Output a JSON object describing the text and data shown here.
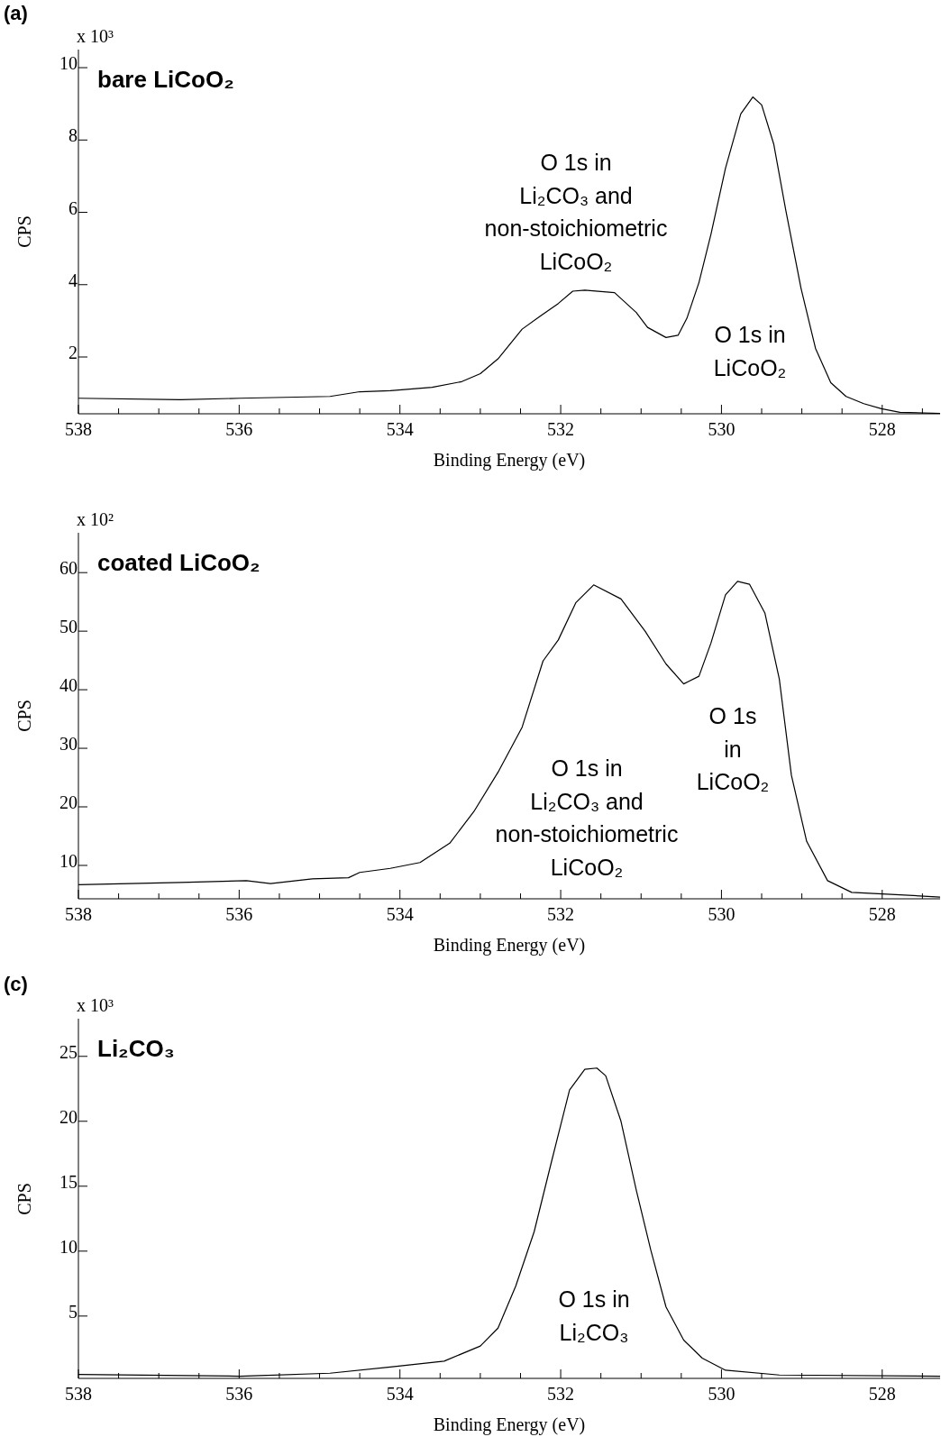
{
  "chart_data": [
    {
      "type": "line",
      "title": "bare LiCoO₂",
      "subtitle": "x 10³",
      "xlabel": "Binding Energy (eV)",
      "ylabel": "CPS",
      "marker": "none",
      "xlim": [
        538,
        527.28
      ],
      "ylim": [
        0.43,
        10.5
      ],
      "xticks": [
        538,
        {
          "value": 537.5,
          "label": null
        },
        {
          "value": 537,
          "label": null
        },
        {
          "value": 536.5,
          "label": null
        },
        536,
        {
          "value": 535.5,
          "label": null
        },
        {
          "value": 535,
          "label": null
        },
        {
          "value": 534.5,
          "label": null
        },
        534,
        {
          "value": 533.5,
          "label": null
        },
        {
          "value": 533,
          "label": null
        },
        {
          "value": 532.5,
          "label": null
        },
        532,
        {
          "value": 531.5,
          "label": null
        },
        {
          "value": 531,
          "label": null
        },
        {
          "value": 530.5,
          "label": null
        },
        530,
        {
          "value": 529.5,
          "label": null
        },
        {
          "value": 529,
          "label": null
        },
        {
          "value": 528.5,
          "label": null
        },
        528,
        {
          "value": 527.5,
          "label": null
        }
      ],
      "yticks": [
        2,
        4,
        6,
        8,
        10
      ],
      "x": [
        538,
        536.73,
        535.99,
        534.87,
        534.5,
        534.12,
        533.6,
        533.23,
        533.0,
        532.78,
        532.48,
        532.26,
        532.03,
        531.85,
        531.7,
        531.33,
        531.06,
        530.92,
        530.69,
        530.54,
        530.43,
        530.28,
        530.13,
        529.95,
        529.76,
        529.61,
        529.5,
        529.35,
        529.2,
        529.01,
        528.83,
        528.64,
        528.45,
        528.23,
        528.01,
        527.78,
        527.28
      ],
      "series": [
        {
          "color": "#000000",
          "values": [
            0.86,
            0.82,
            0.86,
            0.91,
            1.04,
            1.07,
            1.16,
            1.32,
            1.54,
            1.95,
            2.77,
            3.12,
            3.48,
            3.82,
            3.85,
            3.78,
            3.23,
            2.82,
            2.54,
            2.6,
            3.07,
            4.06,
            5.4,
            7.22,
            8.72,
            9.19,
            8.97,
            7.89,
            6.06,
            3.9,
            2.24,
            1.29,
            0.91,
            0.71,
            0.57,
            0.47,
            0.44
          ]
        }
      ],
      "annotations": [
        "(a)",
        "O 1s in\nLi₂CO₃ and\nnon-stoichiometric\nLiCoO₂",
        "O 1s in\nLiCoO₂"
      ]
    },
    {
      "type": "line",
      "title": "coated LiCoO₂",
      "subtitle": "x 10²",
      "xlabel": "Binding Energy (eV)",
      "ylabel": "CPS",
      "marker": "none",
      "xlim": [
        538,
        527.28
      ],
      "ylim": [
        4.3,
        66.8
      ],
      "xticks": [
        538,
        {
          "value": 537.5,
          "label": null
        },
        {
          "value": 537,
          "label": null
        },
        {
          "value": 536.5,
          "label": null
        },
        536,
        {
          "value": 535.5,
          "label": null
        },
        {
          "value": 535,
          "label": null
        },
        {
          "value": 534.5,
          "label": null
        },
        534,
        {
          "value": 533.5,
          "label": null
        },
        {
          "value": 533,
          "label": null
        },
        {
          "value": 532.5,
          "label": null
        },
        532,
        {
          "value": 531.5,
          "label": null
        },
        {
          "value": 531,
          "label": null
        },
        {
          "value": 530.5,
          "label": null
        },
        530,
        {
          "value": 529.5,
          "label": null
        },
        {
          "value": 529,
          "label": null
        },
        {
          "value": 528.5,
          "label": null
        },
        528,
        {
          "value": 527.5,
          "label": null
        }
      ],
      "yticks": [
        10,
        20,
        30,
        40,
        50,
        60
      ],
      "x": [
        538,
        536.73,
        535.91,
        535.61,
        535.09,
        534.64,
        534.5,
        534.12,
        533.75,
        533.38,
        533.08,
        532.78,
        532.48,
        532.22,
        532.03,
        531.81,
        531.59,
        531.25,
        530.95,
        530.69,
        530.47,
        530.28,
        530.13,
        529.95,
        529.8,
        529.65,
        529.46,
        529.28,
        529.13,
        528.94,
        528.68,
        528.38,
        527.94,
        527.28
      ],
      "series": [
        {
          "color": "#000000",
          "values": [
            6.7,
            7.1,
            7.4,
            6.9,
            7.7,
            7.9,
            8.8,
            9.5,
            10.5,
            13.8,
            19.2,
            25.9,
            33.6,
            44.9,
            48.5,
            54.9,
            57.9,
            55.5,
            50.0,
            44.4,
            41.0,
            42.3,
            48.0,
            56.2,
            58.5,
            58.0,
            53.1,
            41.8,
            25.4,
            14.1,
            7.4,
            5.4,
            5.1,
            4.6
          ]
        }
      ],
      "annotations": [
        "O 1s in\nLi₂CO₃ and\nnon-stoichiometric\nLiCoO₂",
        "O 1s\nin\nLiCoO₂"
      ]
    },
    {
      "type": "line",
      "title": "Li₂CO₃",
      "subtitle": "x 10³",
      "xlabel": "Binding Energy (eV)",
      "ylabel": "CPS",
      "marker": "none",
      "xlim": [
        538,
        527.28
      ],
      "ylim": [
        0.2,
        27.9
      ],
      "xticks": [
        538,
        {
          "value": 537.5,
          "label": null
        },
        {
          "value": 537,
          "label": null
        },
        {
          "value": 536.5,
          "label": null
        },
        536,
        {
          "value": 535.5,
          "label": null
        },
        {
          "value": 535,
          "label": null
        },
        {
          "value": 534.5,
          "label": null
        },
        534,
        {
          "value": 533.5,
          "label": null
        },
        {
          "value": 533,
          "label": null
        },
        {
          "value": 532.5,
          "label": null
        },
        532,
        {
          "value": 531.5,
          "label": null
        },
        {
          "value": 531,
          "label": null
        },
        {
          "value": 530.5,
          "label": null
        },
        530,
        {
          "value": 529.5,
          "label": null
        },
        {
          "value": 529,
          "label": null
        },
        {
          "value": 528.5,
          "label": null
        },
        528,
        {
          "value": 527.5,
          "label": null
        }
      ],
      "yticks": [
        5,
        10,
        15,
        20,
        25
      ],
      "x": [
        538,
        535.99,
        534.87,
        534.12,
        533.45,
        533.0,
        532.78,
        532.56,
        532.33,
        532.11,
        531.89,
        531.7,
        531.55,
        531.44,
        531.25,
        531.06,
        530.88,
        530.69,
        530.47,
        530.24,
        529.95,
        529.28,
        527.28
      ],
      "series": [
        {
          "color": "#000000",
          "values": [
            0.5,
            0.37,
            0.6,
            1.07,
            1.53,
            2.69,
            4.07,
            7.3,
            11.5,
            17.0,
            22.4,
            24.0,
            24.1,
            23.5,
            20.0,
            14.7,
            10.1,
            5.7,
            3.15,
            1.76,
            0.83,
            0.46,
            0.37
          ]
        }
      ],
      "annotations": [
        "(c)",
        "O 1s in\nLi₂CO₃"
      ]
    }
  ]
}
